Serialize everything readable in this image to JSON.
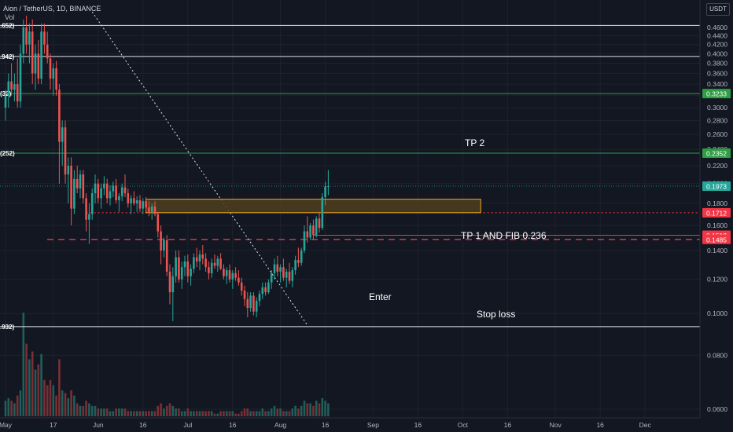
{
  "header": {
    "symbol": "Aion / TetherUS, 1D, BINANCE",
    "vol_label": "Vol"
  },
  "currency": "USDT",
  "colors": {
    "background": "#131722",
    "up": "#26a69a",
    "down": "#ef5350",
    "green_line": "#2e9e44",
    "red_line": "#f23645",
    "white_line": "#e0e3eb",
    "enter_box": "#f5a623",
    "enter_fill": "#4d3e1f"
  },
  "annotations": {
    "tp2": "TP 2",
    "tp1": "TP 1 AND FIB 0.236",
    "enter": "Enter",
    "stop": "Stop loss"
  },
  "chart_data": {
    "type": "candlestick",
    "y_scale": "log",
    "ylim": [
      0.056,
      0.49
    ],
    "y_ticks": [
      "0.4600",
      "0.4400",
      "0.4200",
      "0.4000",
      "0.3800",
      "0.3600",
      "0.3400",
      "0.3200",
      "0.3000",
      "0.2800",
      "0.2600",
      "0.2400",
      "0.2200",
      "0.2000",
      "0.1800",
      "0.1600",
      "0.1400",
      "0.1200",
      "0.1000",
      "0.0800",
      "0.0600"
    ],
    "x_ticks": [
      "May",
      "17",
      "Jun",
      "16",
      "Jul",
      "16",
      "Aug",
      "16",
      "Sep",
      "16",
      "Oct",
      "16",
      "Nov",
      "16",
      "Dec"
    ],
    "first_candle_date": "2021-05-01",
    "horizontal_levels": [
      {
        "price": 0.4652,
        "style": "solid",
        "color": "white",
        "left_label": ".652)"
      },
      {
        "price": 0.3942,
        "style": "solid",
        "color": "white",
        "left_label": ".942)"
      },
      {
        "price": 0.3233,
        "style": "solid",
        "color": "green",
        "left_label": "(32)",
        "price_label": "0.3233"
      },
      {
        "price": 0.2352,
        "style": "solid",
        "color": "green",
        "left_label": "(252)",
        "price_label": "0.2352"
      },
      {
        "price": 0.0932,
        "style": "solid",
        "color": "white",
        "left_label": ".932)"
      },
      {
        "price": 0.1712,
        "style": "dotted",
        "color": "red",
        "price_label": "0.1712"
      },
      {
        "price": 0.1518,
        "style": "solid",
        "color": "red",
        "price_label": "0.1518"
      },
      {
        "price": 0.1485,
        "style": "dashed",
        "color": "red",
        "price_label": "0.1485"
      }
    ],
    "current_price": "0.1973",
    "enter_zone": {
      "price_low": 0.1712,
      "price_high": 0.184,
      "date_start": "2021-06-17",
      "date_end": "2021-10-07"
    },
    "trendline": {
      "start_date": "2021-05-30",
      "start_price": 0.5,
      "end_date": "2021-08-10",
      "end_price": 0.094,
      "style": "dotted"
    },
    "volume_scale": "relative (no axis)",
    "candles": [
      {
        "date": "2021-05-01",
        "o": 0.3,
        "h": 0.33,
        "l": 0.28,
        "c": 0.32,
        "v": 6
      },
      {
        "date": "2021-05-02",
        "o": 0.32,
        "h": 0.36,
        "l": 0.3,
        "c": 0.345,
        "v": 7
      },
      {
        "date": "2021-05-03",
        "o": 0.345,
        "h": 0.38,
        "l": 0.32,
        "c": 0.33,
        "v": 6
      },
      {
        "date": "2021-05-04",
        "o": 0.33,
        "h": 0.36,
        "l": 0.31,
        "c": 0.34,
        "v": 5
      },
      {
        "date": "2021-05-05",
        "o": 0.34,
        "h": 0.39,
        "l": 0.3,
        "c": 0.31,
        "v": 8
      },
      {
        "date": "2021-05-06",
        "o": 0.31,
        "h": 0.42,
        "l": 0.3,
        "c": 0.4,
        "v": 10
      },
      {
        "date": "2021-05-07",
        "o": 0.4,
        "h": 0.48,
        "l": 0.38,
        "c": 0.46,
        "v": 40
      },
      {
        "date": "2021-05-08",
        "o": 0.46,
        "h": 0.49,
        "l": 0.4,
        "c": 0.42,
        "v": 28
      },
      {
        "date": "2021-05-09",
        "o": 0.42,
        "h": 0.47,
        "l": 0.38,
        "c": 0.45,
        "v": 22
      },
      {
        "date": "2021-05-10",
        "o": 0.45,
        "h": 0.48,
        "l": 0.34,
        "c": 0.36,
        "v": 25
      },
      {
        "date": "2021-05-11",
        "o": 0.36,
        "h": 0.42,
        "l": 0.33,
        "c": 0.4,
        "v": 18
      },
      {
        "date": "2021-05-12",
        "o": 0.4,
        "h": 0.43,
        "l": 0.34,
        "c": 0.35,
        "v": 20
      },
      {
        "date": "2021-05-13",
        "o": 0.35,
        "h": 0.47,
        "l": 0.34,
        "c": 0.45,
        "v": 24
      },
      {
        "date": "2021-05-14",
        "o": 0.45,
        "h": 0.47,
        "l": 0.4,
        "c": 0.42,
        "v": 14
      },
      {
        "date": "2021-05-15",
        "o": 0.42,
        "h": 0.45,
        "l": 0.38,
        "c": 0.39,
        "v": 12
      },
      {
        "date": "2021-05-16",
        "o": 0.39,
        "h": 0.4,
        "l": 0.33,
        "c": 0.35,
        "v": 14
      },
      {
        "date": "2021-05-17",
        "o": 0.35,
        "h": 0.38,
        "l": 0.32,
        "c": 0.37,
        "v": 12
      },
      {
        "date": "2021-05-18",
        "o": 0.37,
        "h": 0.385,
        "l": 0.32,
        "c": 0.33,
        "v": 8
      },
      {
        "date": "2021-05-19",
        "o": 0.33,
        "h": 0.34,
        "l": 0.2,
        "c": 0.25,
        "v": 22
      },
      {
        "date": "2021-05-20",
        "o": 0.25,
        "h": 0.28,
        "l": 0.22,
        "c": 0.27,
        "v": 10
      },
      {
        "date": "2021-05-21",
        "o": 0.27,
        "h": 0.28,
        "l": 0.2,
        "c": 0.21,
        "v": 9
      },
      {
        "date": "2021-05-22",
        "o": 0.21,
        "h": 0.23,
        "l": 0.18,
        "c": 0.22,
        "v": 7
      },
      {
        "date": "2021-05-23",
        "o": 0.22,
        "h": 0.23,
        "l": 0.16,
        "c": 0.175,
        "v": 10
      },
      {
        "date": "2021-05-24",
        "o": 0.175,
        "h": 0.215,
        "l": 0.17,
        "c": 0.205,
        "v": 8
      },
      {
        "date": "2021-05-25",
        "o": 0.205,
        "h": 0.22,
        "l": 0.19,
        "c": 0.195,
        "v": 5
      },
      {
        "date": "2021-05-26",
        "o": 0.195,
        "h": 0.215,
        "l": 0.185,
        "c": 0.21,
        "v": 4
      },
      {
        "date": "2021-05-27",
        "o": 0.21,
        "h": 0.215,
        "l": 0.18,
        "c": 0.185,
        "v": 4
      },
      {
        "date": "2021-05-28",
        "o": 0.185,
        "h": 0.19,
        "l": 0.155,
        "c": 0.165,
        "v": 6
      },
      {
        "date": "2021-05-29",
        "o": 0.165,
        "h": 0.18,
        "l": 0.145,
        "c": 0.17,
        "v": 5
      },
      {
        "date": "2021-05-30",
        "o": 0.17,
        "h": 0.195,
        "l": 0.165,
        "c": 0.19,
        "v": 4
      },
      {
        "date": "2021-05-31",
        "o": 0.19,
        "h": 0.21,
        "l": 0.18,
        "c": 0.2,
        "v": 4
      },
      {
        "date": "2021-06-01",
        "o": 0.2,
        "h": 0.205,
        "l": 0.18,
        "c": 0.185,
        "v": 3
      },
      {
        "date": "2021-06-02",
        "o": 0.185,
        "h": 0.2,
        "l": 0.175,
        "c": 0.195,
        "v": 3
      },
      {
        "date": "2021-06-03",
        "o": 0.195,
        "h": 0.208,
        "l": 0.188,
        "c": 0.2,
        "v": 3
      },
      {
        "date": "2021-06-04",
        "o": 0.2,
        "h": 0.205,
        "l": 0.18,
        "c": 0.185,
        "v": 3
      },
      {
        "date": "2021-06-05",
        "o": 0.185,
        "h": 0.198,
        "l": 0.178,
        "c": 0.192,
        "v": 2
      },
      {
        "date": "2021-06-06",
        "o": 0.192,
        "h": 0.202,
        "l": 0.186,
        "c": 0.198,
        "v": 2
      },
      {
        "date": "2021-06-07",
        "o": 0.198,
        "h": 0.205,
        "l": 0.18,
        "c": 0.183,
        "v": 3
      },
      {
        "date": "2021-06-08",
        "o": 0.183,
        "h": 0.19,
        "l": 0.172,
        "c": 0.187,
        "v": 3
      },
      {
        "date": "2021-06-09",
        "o": 0.187,
        "h": 0.2,
        "l": 0.182,
        "c": 0.196,
        "v": 3
      },
      {
        "date": "2021-06-10",
        "o": 0.196,
        "h": 0.21,
        "l": 0.186,
        "c": 0.19,
        "v": 3
      },
      {
        "date": "2021-06-11",
        "o": 0.19,
        "h": 0.195,
        "l": 0.176,
        "c": 0.18,
        "v": 2
      },
      {
        "date": "2021-06-12",
        "o": 0.18,
        "h": 0.188,
        "l": 0.17,
        "c": 0.185,
        "v": 2
      },
      {
        "date": "2021-06-13",
        "o": 0.185,
        "h": 0.192,
        "l": 0.178,
        "c": 0.18,
        "v": 2
      },
      {
        "date": "2021-06-14",
        "o": 0.18,
        "h": 0.187,
        "l": 0.172,
        "c": 0.183,
        "v": 2
      },
      {
        "date": "2021-06-15",
        "o": 0.183,
        "h": 0.188,
        "l": 0.172,
        "c": 0.175,
        "v": 2
      },
      {
        "date": "2021-06-16",
        "o": 0.175,
        "h": 0.185,
        "l": 0.17,
        "c": 0.182,
        "v": 2
      },
      {
        "date": "2021-06-17",
        "o": 0.182,
        "h": 0.186,
        "l": 0.172,
        "c": 0.176,
        "v": 2
      },
      {
        "date": "2021-06-18",
        "o": 0.176,
        "h": 0.182,
        "l": 0.168,
        "c": 0.172,
        "v": 2
      },
      {
        "date": "2021-06-19",
        "o": 0.172,
        "h": 0.18,
        "l": 0.165,
        "c": 0.177,
        "v": 2
      },
      {
        "date": "2021-06-20",
        "o": 0.177,
        "h": 0.182,
        "l": 0.168,
        "c": 0.17,
        "v": 2
      },
      {
        "date": "2021-06-21",
        "o": 0.17,
        "h": 0.172,
        "l": 0.15,
        "c": 0.155,
        "v": 4
      },
      {
        "date": "2021-06-22",
        "o": 0.155,
        "h": 0.16,
        "l": 0.13,
        "c": 0.14,
        "v": 5
      },
      {
        "date": "2021-06-23",
        "o": 0.14,
        "h": 0.15,
        "l": 0.135,
        "c": 0.148,
        "v": 3
      },
      {
        "date": "2021-06-24",
        "o": 0.148,
        "h": 0.152,
        "l": 0.122,
        "c": 0.125,
        "v": 4
      },
      {
        "date": "2021-06-25",
        "o": 0.125,
        "h": 0.13,
        "l": 0.105,
        "c": 0.112,
        "v": 5
      },
      {
        "date": "2021-06-26",
        "o": 0.112,
        "h": 0.128,
        "l": 0.096,
        "c": 0.122,
        "v": 4
      },
      {
        "date": "2021-06-27",
        "o": 0.122,
        "h": 0.14,
        "l": 0.118,
        "c": 0.135,
        "v": 3
      },
      {
        "date": "2021-06-28",
        "o": 0.135,
        "h": 0.14,
        "l": 0.118,
        "c": 0.12,
        "v": 3
      },
      {
        "date": "2021-06-29",
        "o": 0.12,
        "h": 0.132,
        "l": 0.114,
        "c": 0.128,
        "v": 2
      },
      {
        "date": "2021-06-30",
        "o": 0.128,
        "h": 0.136,
        "l": 0.122,
        "c": 0.132,
        "v": 2
      },
      {
        "date": "2021-07-01",
        "o": 0.132,
        "h": 0.137,
        "l": 0.118,
        "c": 0.122,
        "v": 3
      },
      {
        "date": "2021-07-02",
        "o": 0.122,
        "h": 0.13,
        "l": 0.116,
        "c": 0.127,
        "v": 2
      },
      {
        "date": "2021-07-03",
        "o": 0.127,
        "h": 0.138,
        "l": 0.124,
        "c": 0.135,
        "v": 2
      },
      {
        "date": "2021-07-04",
        "o": 0.135,
        "h": 0.142,
        "l": 0.128,
        "c": 0.132,
        "v": 2
      },
      {
        "date": "2021-07-05",
        "o": 0.132,
        "h": 0.14,
        "l": 0.126,
        "c": 0.137,
        "v": 2
      },
      {
        "date": "2021-07-06",
        "o": 0.137,
        "h": 0.144,
        "l": 0.13,
        "c": 0.134,
        "v": 2
      },
      {
        "date": "2021-07-07",
        "o": 0.134,
        "h": 0.138,
        "l": 0.125,
        "c": 0.128,
        "v": 2
      },
      {
        "date": "2021-07-08",
        "o": 0.128,
        "h": 0.132,
        "l": 0.12,
        "c": 0.124,
        "v": 2
      },
      {
        "date": "2021-07-09",
        "o": 0.124,
        "h": 0.134,
        "l": 0.121,
        "c": 0.131,
        "v": 2
      },
      {
        "date": "2021-07-10",
        "o": 0.131,
        "h": 0.137,
        "l": 0.127,
        "c": 0.129,
        "v": 1
      },
      {
        "date": "2021-07-11",
        "o": 0.129,
        "h": 0.136,
        "l": 0.125,
        "c": 0.134,
        "v": 1
      },
      {
        "date": "2021-07-12",
        "o": 0.134,
        "h": 0.138,
        "l": 0.126,
        "c": 0.127,
        "v": 2
      },
      {
        "date": "2021-07-13",
        "o": 0.127,
        "h": 0.13,
        "l": 0.12,
        "c": 0.122,
        "v": 2
      },
      {
        "date": "2021-07-14",
        "o": 0.122,
        "h": 0.128,
        "l": 0.117,
        "c": 0.126,
        "v": 2
      },
      {
        "date": "2021-07-15",
        "o": 0.126,
        "h": 0.13,
        "l": 0.118,
        "c": 0.12,
        "v": 2
      },
      {
        "date": "2021-07-16",
        "o": 0.12,
        "h": 0.126,
        "l": 0.114,
        "c": 0.124,
        "v": 2
      },
      {
        "date": "2021-07-17",
        "o": 0.124,
        "h": 0.128,
        "l": 0.119,
        "c": 0.121,
        "v": 1
      },
      {
        "date": "2021-07-18",
        "o": 0.121,
        "h": 0.126,
        "l": 0.116,
        "c": 0.118,
        "v": 1
      },
      {
        "date": "2021-07-19",
        "o": 0.118,
        "h": 0.121,
        "l": 0.11,
        "c": 0.113,
        "v": 2
      },
      {
        "date": "2021-07-20",
        "o": 0.113,
        "h": 0.116,
        "l": 0.104,
        "c": 0.108,
        "v": 3
      },
      {
        "date": "2021-07-21",
        "o": 0.108,
        "h": 0.112,
        "l": 0.098,
        "c": 0.103,
        "v": 3
      },
      {
        "date": "2021-07-22",
        "o": 0.103,
        "h": 0.112,
        "l": 0.101,
        "c": 0.11,
        "v": 2
      },
      {
        "date": "2021-07-23",
        "o": 0.11,
        "h": 0.112,
        "l": 0.099,
        "c": 0.101,
        "v": 2
      },
      {
        "date": "2021-07-24",
        "o": 0.101,
        "h": 0.109,
        "l": 0.098,
        "c": 0.107,
        "v": 2
      },
      {
        "date": "2021-07-25",
        "o": 0.107,
        "h": 0.113,
        "l": 0.104,
        "c": 0.111,
        "v": 2
      },
      {
        "date": "2021-07-26",
        "o": 0.111,
        "h": 0.118,
        "l": 0.108,
        "c": 0.115,
        "v": 3
      },
      {
        "date": "2021-07-27",
        "o": 0.115,
        "h": 0.118,
        "l": 0.11,
        "c": 0.112,
        "v": 2
      },
      {
        "date": "2021-07-28",
        "o": 0.112,
        "h": 0.12,
        "l": 0.111,
        "c": 0.118,
        "v": 2
      },
      {
        "date": "2021-07-29",
        "o": 0.118,
        "h": 0.126,
        "l": 0.114,
        "c": 0.124,
        "v": 3
      },
      {
        "date": "2021-07-30",
        "o": 0.124,
        "h": 0.134,
        "l": 0.12,
        "c": 0.13,
        "v": 4
      },
      {
        "date": "2021-07-31",
        "o": 0.13,
        "h": 0.136,
        "l": 0.122,
        "c": 0.125,
        "v": 3
      },
      {
        "date": "2021-08-01",
        "o": 0.125,
        "h": 0.13,
        "l": 0.118,
        "c": 0.128,
        "v": 3
      },
      {
        "date": "2021-08-02",
        "o": 0.128,
        "h": 0.134,
        "l": 0.119,
        "c": 0.121,
        "v": 2
      },
      {
        "date": "2021-08-03",
        "o": 0.121,
        "h": 0.127,
        "l": 0.115,
        "c": 0.125,
        "v": 2
      },
      {
        "date": "2021-08-04",
        "o": 0.125,
        "h": 0.131,
        "l": 0.117,
        "c": 0.119,
        "v": 2
      },
      {
        "date": "2021-08-05",
        "o": 0.119,
        "h": 0.128,
        "l": 0.115,
        "c": 0.126,
        "v": 3
      },
      {
        "date": "2021-08-06",
        "o": 0.126,
        "h": 0.136,
        "l": 0.123,
        "c": 0.133,
        "v": 4
      },
      {
        "date": "2021-08-07",
        "o": 0.133,
        "h": 0.142,
        "l": 0.128,
        "c": 0.131,
        "v": 3
      },
      {
        "date": "2021-08-08",
        "o": 0.131,
        "h": 0.142,
        "l": 0.129,
        "c": 0.14,
        "v": 4
      },
      {
        "date": "2021-08-09",
        "o": 0.14,
        "h": 0.16,
        "l": 0.138,
        "c": 0.155,
        "v": 6
      },
      {
        "date": "2021-08-10",
        "o": 0.155,
        "h": 0.168,
        "l": 0.146,
        "c": 0.15,
        "v": 5
      },
      {
        "date": "2021-08-11",
        "o": 0.15,
        "h": 0.162,
        "l": 0.148,
        "c": 0.16,
        "v": 5
      },
      {
        "date": "2021-08-12",
        "o": 0.16,
        "h": 0.165,
        "l": 0.148,
        "c": 0.152,
        "v": 4
      },
      {
        "date": "2021-08-13",
        "o": 0.152,
        "h": 0.168,
        "l": 0.15,
        "c": 0.166,
        "v": 6
      },
      {
        "date": "2021-08-14",
        "o": 0.166,
        "h": 0.172,
        "l": 0.154,
        "c": 0.158,
        "v": 5
      },
      {
        "date": "2021-08-15",
        "o": 0.158,
        "h": 0.19,
        "l": 0.156,
        "c": 0.186,
        "v": 7
      },
      {
        "date": "2021-08-16",
        "o": 0.186,
        "h": 0.202,
        "l": 0.178,
        "c": 0.197,
        "v": 6
      },
      {
        "date": "2021-08-17",
        "o": 0.197,
        "h": 0.215,
        "l": 0.188,
        "c": 0.1973,
        "v": 5
      }
    ]
  }
}
